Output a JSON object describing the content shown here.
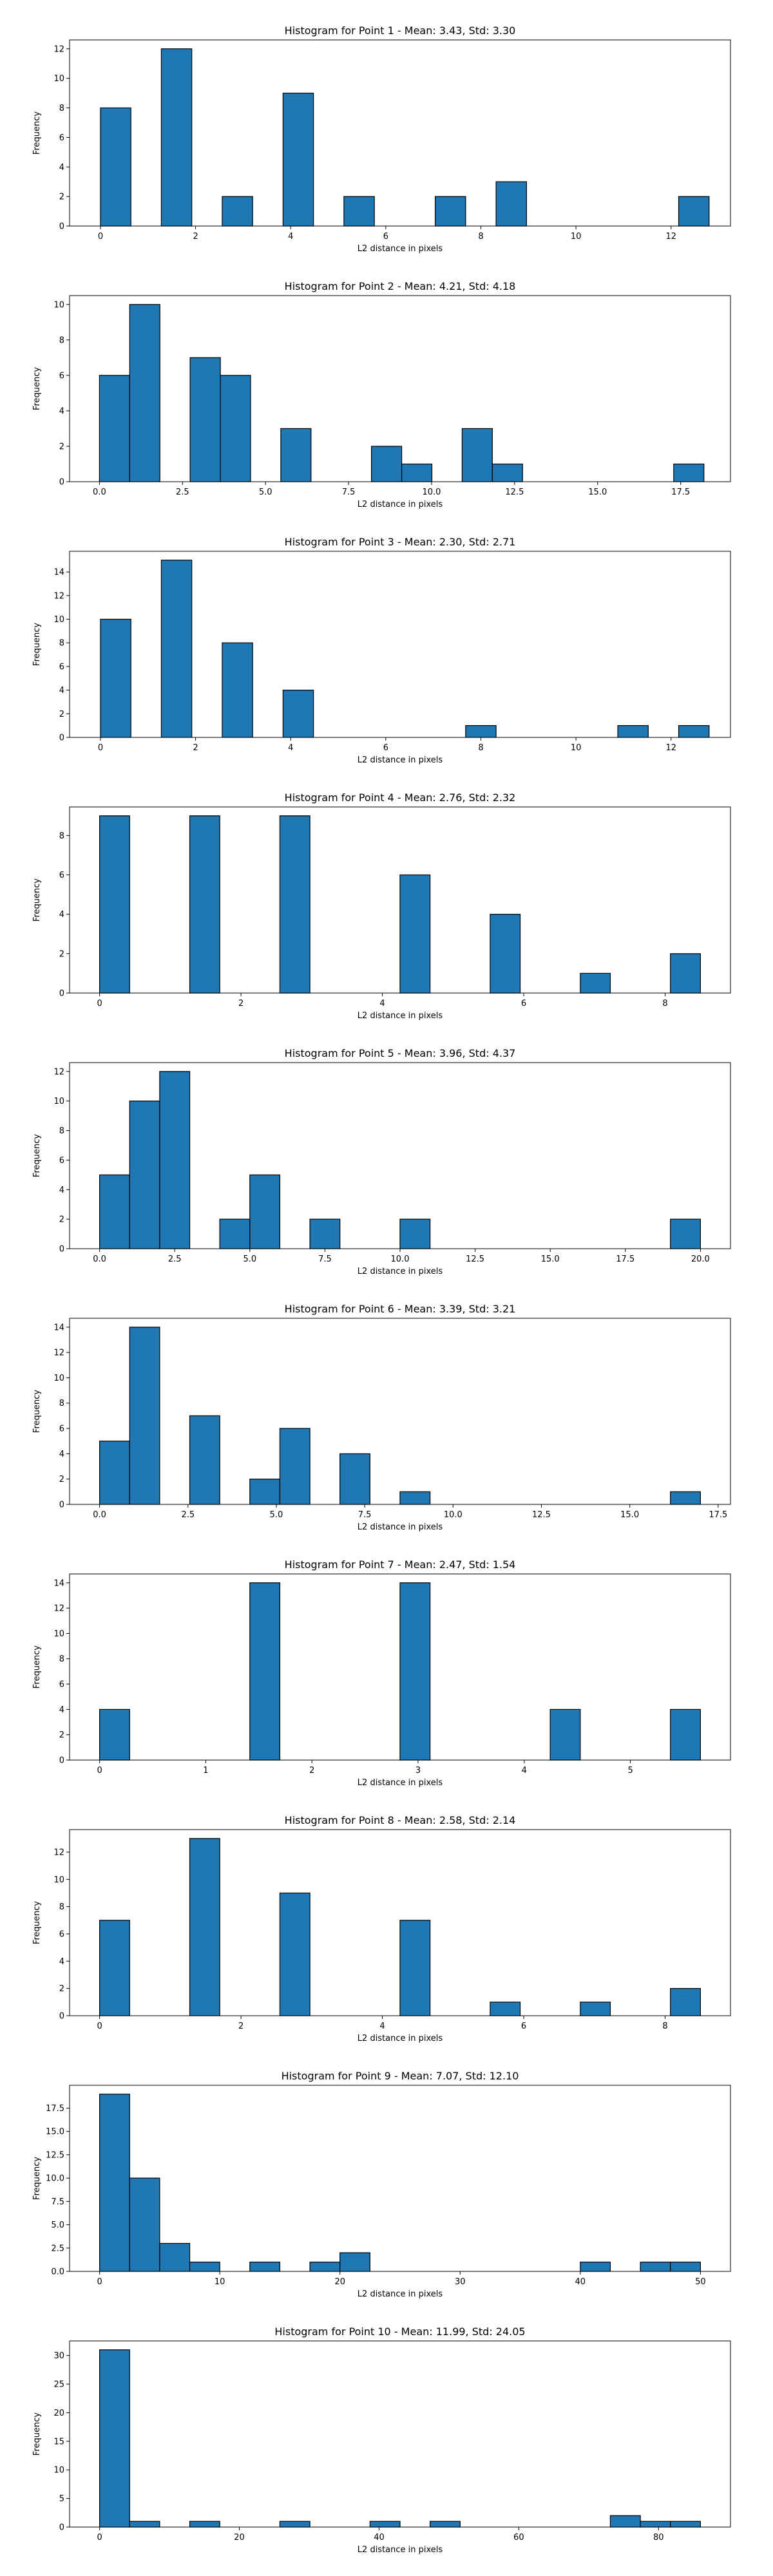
{
  "chart_data": [
    {
      "type": "bar",
      "title": "Histogram for Point 1 - Mean: 3.43, Std: 3.30",
      "xlabel": "L2 distance in pixels",
      "ylabel": "Frequency",
      "xlim": [
        -0.65,
        13.25
      ],
      "ylim": [
        0,
        12.6
      ],
      "xticks": [
        0,
        2,
        4,
        6,
        8,
        10,
        12
      ],
      "xtick_labels": [
        "0",
        "2",
        "4",
        "6",
        "8",
        "10",
        "12"
      ],
      "yticks": [
        0,
        2,
        4,
        6,
        8,
        10,
        12
      ],
      "ytick_labels": [
        "0",
        "2",
        "4",
        "6",
        "8",
        "10",
        "12"
      ],
      "bin_start": 0.0,
      "bin_width": 0.64,
      "values": [
        8,
        0,
        12,
        0,
        2,
        0,
        9,
        0,
        2,
        0,
        0,
        2,
        0,
        3,
        0,
        0,
        0,
        0,
        0,
        2
      ]
    },
    {
      "type": "bar",
      "title": "Histogram for Point 2 - Mean: 4.21, Std: 4.18",
      "xlabel": "L2 distance in pixels",
      "ylabel": "Frequency",
      "xlim": [
        -0.9,
        19.0
      ],
      "ylim": [
        0,
        10.5
      ],
      "xticks": [
        0,
        2.5,
        5,
        7.5,
        10,
        12.5,
        15,
        17.5
      ],
      "xtick_labels": [
        "0.0",
        "2.5",
        "5.0",
        "7.5",
        "10.0",
        "12.5",
        "15.0",
        "17.5"
      ],
      "yticks": [
        0,
        2,
        4,
        6,
        8,
        10
      ],
      "ytick_labels": [
        "0",
        "2",
        "4",
        "6",
        "8",
        "10"
      ],
      "bin_start": 0.0,
      "bin_width": 0.91,
      "values": [
        6,
        10,
        0,
        7,
        6,
        0,
        3,
        0,
        0,
        2,
        1,
        0,
        3,
        1,
        0,
        0,
        0,
        0,
        0,
        1
      ]
    },
    {
      "type": "bar",
      "title": "Histogram for Point 3 - Mean: 2.30, Std: 2.71",
      "xlabel": "L2 distance in pixels",
      "ylabel": "Frequency",
      "xlim": [
        -0.65,
        13.25
      ],
      "ylim": [
        0,
        15.75
      ],
      "xticks": [
        0,
        2,
        4,
        6,
        8,
        10,
        12
      ],
      "xtick_labels": [
        "0",
        "2",
        "4",
        "6",
        "8",
        "10",
        "12"
      ],
      "yticks": [
        0,
        2,
        4,
        6,
        8,
        10,
        12,
        14
      ],
      "ytick_labels": [
        "0",
        "2",
        "4",
        "6",
        "8",
        "10",
        "12",
        "14"
      ],
      "bin_start": 0.0,
      "bin_width": 0.64,
      "values": [
        10,
        0,
        15,
        0,
        8,
        0,
        4,
        0,
        0,
        0,
        0,
        0,
        1,
        0,
        0,
        0,
        0,
        1,
        0,
        1
      ]
    },
    {
      "type": "bar",
      "title": "Histogram for Point 4 - Mean: 2.76, Std: 2.32",
      "xlabel": "L2 distance in pixels",
      "ylabel": "Frequency",
      "xlim": [
        -0.425,
        8.925
      ],
      "ylim": [
        0,
        9.45
      ],
      "xticks": [
        0,
        2,
        4,
        6,
        8
      ],
      "xtick_labels": [
        "0",
        "2",
        "4",
        "6",
        "8"
      ],
      "yticks": [
        0,
        2,
        4,
        6,
        8
      ],
      "ytick_labels": [
        "0",
        "2",
        "4",
        "6",
        "8"
      ],
      "bin_start": 0.0,
      "bin_width": 0.425,
      "values": [
        9,
        0,
        0,
        9,
        0,
        0,
        9,
        0,
        0,
        0,
        6,
        0,
        0,
        4,
        0,
        0,
        1,
        0,
        0,
        2
      ]
    },
    {
      "type": "bar",
      "title": "Histogram for Point 5 - Mean: 3.96, Std: 4.37",
      "xlabel": "L2 distance in pixels",
      "ylabel": "Frequency",
      "xlim": [
        -1.0,
        21.0
      ],
      "ylim": [
        0,
        12.6
      ],
      "xticks": [
        0,
        2.5,
        5,
        7.5,
        10,
        12.5,
        15,
        17.5,
        20
      ],
      "xtick_labels": [
        "0.0",
        "2.5",
        "5.0",
        "7.5",
        "10.0",
        "12.5",
        "15.0",
        "17.5",
        "20.0"
      ],
      "yticks": [
        0,
        2,
        4,
        6,
        8,
        10,
        12
      ],
      "ytick_labels": [
        "0",
        "2",
        "4",
        "6",
        "8",
        "10",
        "12"
      ],
      "bin_start": 0.0,
      "bin_width": 1.0,
      "values": [
        5,
        10,
        12,
        0,
        2,
        5,
        0,
        2,
        0,
        0,
        2,
        0,
        0,
        0,
        0,
        0,
        0,
        0,
        0,
        2
      ]
    },
    {
      "type": "bar",
      "title": "Histogram for Point 6 - Mean: 3.39, Std: 3.21",
      "xlabel": "L2 distance in pixels",
      "ylabel": "Frequency",
      "xlim": [
        -0.85,
        17.85
      ],
      "ylim": [
        0,
        14.7
      ],
      "xticks": [
        0,
        2.5,
        5,
        7.5,
        10,
        12.5,
        15,
        17.5
      ],
      "xtick_labels": [
        "0.0",
        "2.5",
        "5.0",
        "7.5",
        "10.0",
        "12.5",
        "15.0",
        "17.5"
      ],
      "yticks": [
        0,
        2,
        4,
        6,
        8,
        10,
        12,
        14
      ],
      "ytick_labels": [
        "0",
        "2",
        "4",
        "6",
        "8",
        "10",
        "12",
        "14"
      ],
      "bin_start": 0.0,
      "bin_width": 0.85,
      "values": [
        5,
        14,
        0,
        7,
        0,
        2,
        6,
        0,
        4,
        0,
        1,
        0,
        0,
        0,
        0,
        0,
        0,
        0,
        0,
        1
      ]
    },
    {
      "type": "bar",
      "title": "Histogram for Point 7 - Mean: 2.47, Std: 1.54",
      "xlabel": "L2 distance in pixels",
      "ylabel": "Frequency",
      "xlim": [
        -0.283,
        5.943
      ],
      "ylim": [
        0,
        14.7
      ],
      "xticks": [
        0,
        1,
        2,
        3,
        4,
        5
      ],
      "xtick_labels": [
        "0",
        "1",
        "2",
        "3",
        "4",
        "5"
      ],
      "yticks": [
        0,
        2,
        4,
        6,
        8,
        10,
        12,
        14
      ],
      "ytick_labels": [
        "0",
        "2",
        "4",
        "6",
        "8",
        "10",
        "12",
        "14"
      ],
      "bin_start": 0.0,
      "bin_width": 0.283,
      "values": [
        4,
        0,
        0,
        0,
        0,
        14,
        0,
        0,
        0,
        0,
        14,
        0,
        0,
        0,
        0,
        4,
        0,
        0,
        0,
        4
      ]
    },
    {
      "type": "bar",
      "title": "Histogram for Point 8 - Mean: 2.58, Std: 2.14",
      "xlabel": "L2 distance in pixels",
      "ylabel": "Frequency",
      "xlim": [
        -0.425,
        8.925
      ],
      "ylim": [
        0,
        13.65
      ],
      "xticks": [
        0,
        2,
        4,
        6,
        8
      ],
      "xtick_labels": [
        "0",
        "2",
        "4",
        "6",
        "8"
      ],
      "yticks": [
        0,
        2,
        4,
        6,
        8,
        10,
        12
      ],
      "ytick_labels": [
        "0",
        "2",
        "4",
        "6",
        "8",
        "10",
        "12"
      ],
      "bin_start": 0.0,
      "bin_width": 0.425,
      "values": [
        7,
        0,
        0,
        13,
        0,
        0,
        9,
        0,
        0,
        0,
        7,
        0,
        0,
        1,
        0,
        0,
        1,
        0,
        0,
        2
      ]
    },
    {
      "type": "bar",
      "title": "Histogram for Point 9 - Mean: 7.07, Std: 12.10",
      "xlabel": "L2 distance in pixels",
      "ylabel": "Frequency",
      "xlim": [
        -2.5,
        52.5
      ],
      "ylim": [
        0,
        19.95
      ],
      "xticks": [
        0,
        10,
        20,
        30,
        40,
        50
      ],
      "xtick_labels": [
        "0",
        "10",
        "20",
        "30",
        "40",
        "50"
      ],
      "yticks": [
        0,
        2.5,
        5,
        7.5,
        10,
        12.5,
        15,
        17.5
      ],
      "ytick_labels": [
        "0.0",
        "2.5",
        "5.0",
        "7.5",
        "10.0",
        "12.5",
        "15.0",
        "17.5"
      ],
      "bin_start": 0.0,
      "bin_width": 2.5,
      "values": [
        19,
        10,
        3,
        1,
        0,
        1,
        0,
        1,
        2,
        0,
        0,
        0,
        0,
        0,
        0,
        0,
        1,
        0,
        1,
        1
      ]
    },
    {
      "type": "bar",
      "title": "Histogram for Point 10 - Mean: 11.99, Std: 24.05",
      "xlabel": "L2 distance in pixels",
      "ylabel": "Frequency",
      "xlim": [
        -4.3,
        90.3
      ],
      "ylim": [
        0,
        32.55
      ],
      "xticks": [
        0,
        20,
        40,
        60,
        80
      ],
      "xtick_labels": [
        "0",
        "20",
        "40",
        "60",
        "80"
      ],
      "yticks": [
        0,
        5,
        10,
        15,
        20,
        25,
        30
      ],
      "ytick_labels": [
        "0",
        "5",
        "10",
        "15",
        "20",
        "25",
        "30"
      ],
      "bin_start": 0.0,
      "bin_width": 4.3,
      "values": [
        31,
        1,
        0,
        1,
        0,
        0,
        1,
        0,
        0,
        1,
        0,
        1,
        0,
        0,
        0,
        0,
        0,
        2,
        1,
        1
      ]
    }
  ]
}
